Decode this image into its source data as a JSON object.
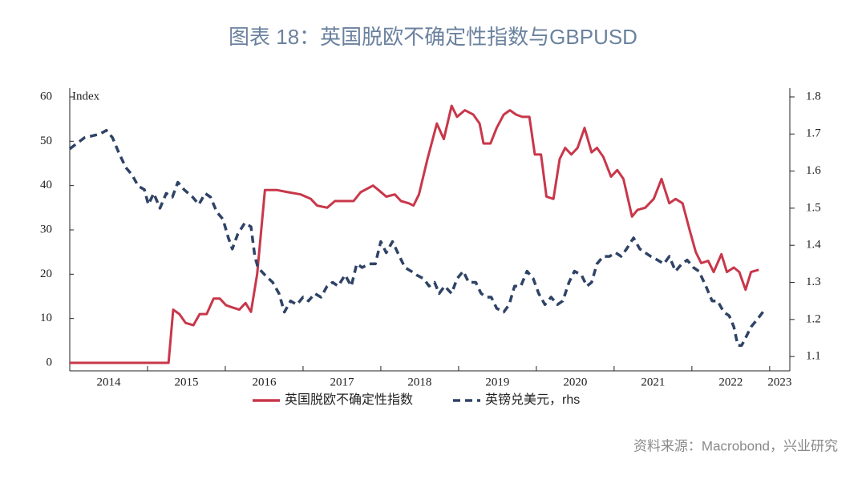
{
  "chart_data": {
    "type": "line",
    "title": "图表 18：英国脱欧不确定性指数与GBPUSD",
    "y_label": "Index",
    "source": "资料来源：Macrobond，兴业研究",
    "xlim": [
      2014,
      2022.95
    ],
    "xticks": [
      2014,
      2015,
      2016,
      2017,
      2018,
      2019,
      2020,
      2021,
      2022,
      2023
    ],
    "ylim": [
      0,
      60
    ],
    "yticks": [
      0,
      10,
      20,
      30,
      40,
      50,
      60
    ],
    "y2lim": [
      1.083,
      1.8
    ],
    "y2ticks": [
      1.1,
      1.2,
      1.3,
      1.4,
      1.5,
      1.6,
      1.7,
      1.8
    ],
    "series": [
      {
        "name": "英国脱欧不确定性指数",
        "color": "#c8374a",
        "dash": false,
        "x": [
          2014.0,
          2015.27,
          2015.33,
          2015.41,
          2015.49,
          2015.59,
          2015.67,
          2015.76,
          2015.85,
          2015.93,
          2016.01,
          2016.09,
          2016.18,
          2016.26,
          2016.33,
          2016.41,
          2016.51,
          2016.66,
          2016.81,
          2016.97,
          2017.1,
          2017.18,
          2017.31,
          2017.41,
          2017.54,
          2017.65,
          2017.74,
          2017.9,
          2017.97,
          2018.07,
          2018.18,
          2018.26,
          2018.36,
          2018.42,
          2018.49,
          2018.6,
          2018.72,
          2018.81,
          2018.91,
          2018.98,
          2019.08,
          2019.19,
          2019.27,
          2019.32,
          2019.41,
          2019.49,
          2019.58,
          2019.66,
          2019.74,
          2019.82,
          2019.91,
          2019.98,
          2020.06,
          2020.13,
          2020.22,
          2020.3,
          2020.37,
          2020.45,
          2020.53,
          2020.62,
          2020.71,
          2020.78,
          2020.86,
          2020.96,
          2021.04,
          2021.12,
          2021.23,
          2021.3,
          2021.4,
          2021.51,
          2021.61,
          2021.71,
          2021.79,
          2021.88,
          2021.97,
          2022.05,
          2022.12,
          2022.21,
          2022.28,
          2022.38,
          2022.45,
          2022.54,
          2022.61,
          2022.69,
          2022.76,
          2022.86
        ],
        "values": [
          0,
          0,
          12,
          11,
          9,
          8.5,
          11,
          11,
          14.5,
          14.5,
          13,
          12.5,
          12,
          13.5,
          11.5,
          20,
          39,
          39,
          38.5,
          38,
          37,
          35.5,
          35,
          36.5,
          36.5,
          36.5,
          38.5,
          40,
          39,
          37.5,
          38,
          36.5,
          36,
          35.5,
          38,
          46,
          54,
          50.5,
          58,
          55.5,
          57,
          56,
          54,
          49.5,
          49.5,
          53,
          56,
          57,
          56,
          55.5,
          55.5,
          47,
          47,
          37.5,
          37,
          46,
          48.5,
          47,
          48.5,
          53,
          47.5,
          48.5,
          46.5,
          42,
          43.5,
          41.5,
          33,
          34.5,
          35,
          37,
          41.5,
          36,
          37,
          36,
          30,
          25,
          22.5,
          23,
          20.5,
          24.5,
          20.5,
          21.5,
          20.5,
          16.5,
          20.5,
          21
        ]
      },
      {
        "name": "英镑兑美元，rhs",
        "color": "#2f4366",
        "dash": true,
        "axis": "y2",
        "x": [
          2014.0,
          2014.19,
          2014.39,
          2014.47,
          2014.55,
          2014.63,
          2014.72,
          2014.8,
          2014.88,
          2014.96,
          2015.01,
          2015.08,
          2015.16,
          2015.24,
          2015.32,
          2015.39,
          2015.47,
          2015.58,
          2015.66,
          2015.74,
          2015.81,
          2015.89,
          2015.97,
          2016.04,
          2016.09,
          2016.16,
          2016.25,
          2016.33,
          2016.38,
          2016.42,
          2016.51,
          2016.61,
          2016.69,
          2016.76,
          2016.84,
          2016.92,
          2017.0,
          2017.07,
          2017.15,
          2017.23,
          2017.31,
          2017.38,
          2017.45,
          2017.54,
          2017.62,
          2017.69,
          2017.76,
          2017.85,
          2017.93,
          2018.0,
          2018.07,
          2018.15,
          2018.24,
          2018.31,
          2018.39,
          2018.46,
          2018.55,
          2018.62,
          2018.69,
          2018.75,
          2018.82,
          2018.91,
          2018.98,
          2019.06,
          2019.13,
          2019.22,
          2019.29,
          2019.36,
          2019.42,
          2019.49,
          2019.58,
          2019.65,
          2019.72,
          2019.8,
          2019.88,
          2019.96,
          2020.03,
          2020.11,
          2020.19,
          2020.27,
          2020.34,
          2020.42,
          2020.49,
          2020.58,
          2020.65,
          2020.71,
          2020.78,
          2020.86,
          2020.94,
          2021.02,
          2021.09,
          2021.16,
          2021.25,
          2021.33,
          2021.4,
          2021.47,
          2021.56,
          2021.64,
          2021.71,
          2021.79,
          2021.87,
          2021.94,
          2022.02,
          2022.09,
          2022.18,
          2022.26,
          2022.33,
          2022.41,
          2022.48,
          2022.54,
          2022.59,
          2022.64,
          2022.69,
          2022.76,
          2022.84,
          2022.95
        ],
        "values": [
          1.66,
          1.69,
          1.7,
          1.71,
          1.69,
          1.65,
          1.61,
          1.59,
          1.56,
          1.55,
          1.51,
          1.54,
          1.5,
          1.54,
          1.53,
          1.57,
          1.55,
          1.53,
          1.51,
          1.54,
          1.53,
          1.49,
          1.47,
          1.42,
          1.39,
          1.43,
          1.46,
          1.45,
          1.37,
          1.34,
          1.32,
          1.3,
          1.27,
          1.22,
          1.25,
          1.24,
          1.26,
          1.25,
          1.27,
          1.26,
          1.29,
          1.3,
          1.29,
          1.32,
          1.29,
          1.35,
          1.34,
          1.35,
          1.35,
          1.41,
          1.38,
          1.41,
          1.37,
          1.34,
          1.33,
          1.32,
          1.31,
          1.29,
          1.3,
          1.27,
          1.29,
          1.27,
          1.31,
          1.33,
          1.3,
          1.3,
          1.27,
          1.26,
          1.26,
          1.23,
          1.22,
          1.24,
          1.29,
          1.29,
          1.33,
          1.31,
          1.27,
          1.24,
          1.26,
          1.24,
          1.25,
          1.3,
          1.33,
          1.32,
          1.29,
          1.3,
          1.35,
          1.37,
          1.37,
          1.38,
          1.37,
          1.39,
          1.42,
          1.39,
          1.38,
          1.37,
          1.36,
          1.35,
          1.37,
          1.33,
          1.35,
          1.36,
          1.34,
          1.33,
          1.29,
          1.25,
          1.25,
          1.22,
          1.21,
          1.18,
          1.13,
          1.13,
          1.15,
          1.18,
          1.2,
          1.23
        ]
      }
    ]
  }
}
